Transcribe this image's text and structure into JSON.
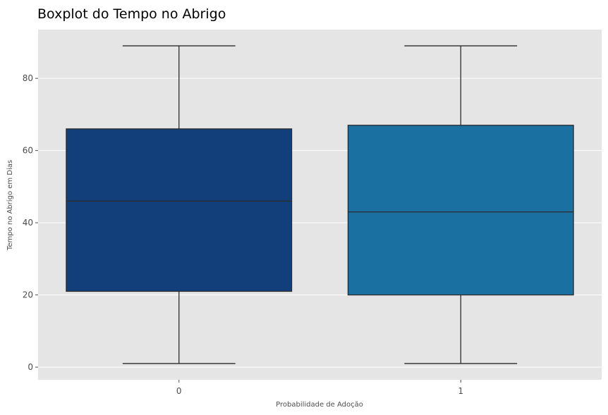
{
  "chart_data": {
    "type": "boxplot",
    "title": "Boxplot do Tempo no Abrigo",
    "xlabel": "Probabilidade de Adoção",
    "ylabel": "Tempo no Abrigo em Dias",
    "categories": [
      "0",
      "1"
    ],
    "boxes": [
      {
        "category": "0",
        "whisker_low": 1,
        "q1": 21,
        "median": 46,
        "q3": 66,
        "whisker_high": 89,
        "color": "#123f7a"
      },
      {
        "category": "1",
        "whisker_low": 1,
        "q1": 20,
        "median": 43,
        "q3": 67,
        "whisker_high": 89,
        "color": "#1a70a0"
      }
    ],
    "yticks": [
      0,
      20,
      40,
      60,
      80
    ],
    "ylim": [
      -3.5,
      93.5
    ],
    "grid": true,
    "legend": "none",
    "background_color": "#e5e5e5",
    "grid_color": "#ffffff",
    "line_color": "#2b2b2b"
  }
}
